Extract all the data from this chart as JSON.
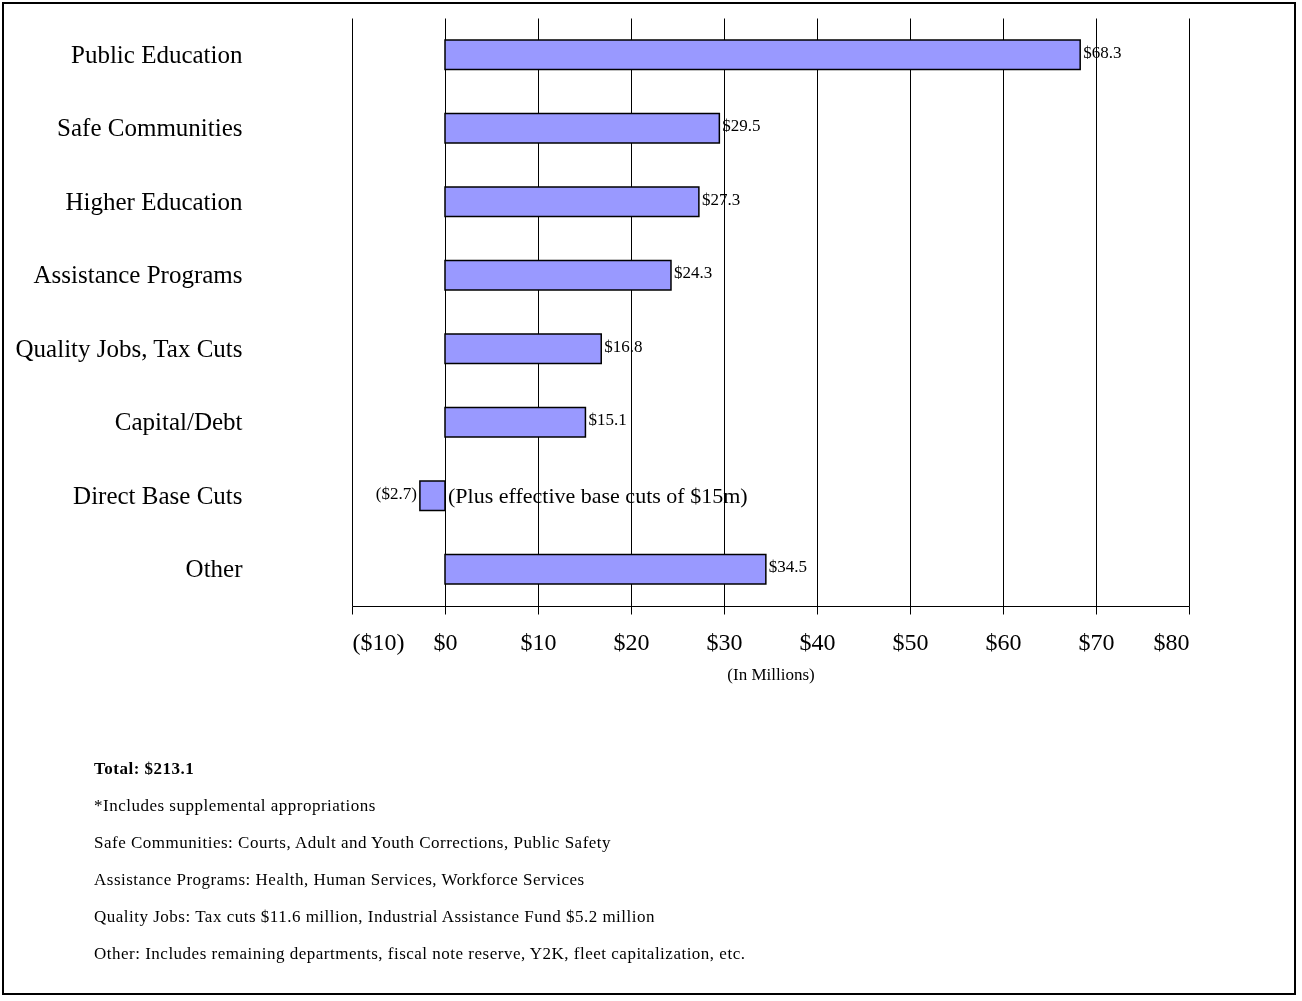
{
  "chart_data": {
    "type": "bar",
    "orientation": "horizontal",
    "categories": [
      "Public Education",
      "Safe Communities",
      "Higher Education",
      "Assistance Programs",
      "Quality Jobs, Tax Cuts",
      "Capital/Debt",
      "Direct Base Cuts",
      "Other"
    ],
    "values": [
      68.3,
      29.5,
      27.3,
      24.3,
      16.8,
      15.1,
      -2.7,
      34.5
    ],
    "value_labels": [
      "$68.3",
      "$29.5",
      "$27.3",
      "$24.3",
      "$16.8",
      "$15.1",
      "($2.7)",
      "$34.5"
    ],
    "color": "#9999ff",
    "xlim": [
      -10,
      80
    ],
    "xticks": [
      {
        "value": -10,
        "label": "($10)"
      },
      {
        "value": 0,
        "label": "$0"
      },
      {
        "value": 10,
        "label": "$10"
      },
      {
        "value": 20,
        "label": "$20"
      },
      {
        "value": 30,
        "label": "$30"
      },
      {
        "value": 40,
        "label": "$40"
      },
      {
        "value": 50,
        "label": "$50"
      },
      {
        "value": 60,
        "label": "$60"
      },
      {
        "value": 70,
        "label": "$70"
      },
      {
        "value": 80,
        "label": "$80"
      }
    ],
    "xlabel": "(In Millions)",
    "grid": "x",
    "annotations": [
      {
        "text": "(Plus effective base cuts of $15m)",
        "x": 0,
        "y": "Direct Base Cuts"
      },
      "Total: $213.1",
      "*Includes supplemental appropriations",
      "Safe Communities: Courts, Adult and Youth Corrections, Public Safety",
      "Assistance Programs: Health, Human Services, Workforce Services",
      "Quality Jobs:  Tax cuts $11.6 million, Industrial Assistance Fund $5.2 million",
      "Other: Includes remaining departments, fiscal note reserve, Y2K, fleet capitalization, etc."
    ]
  }
}
